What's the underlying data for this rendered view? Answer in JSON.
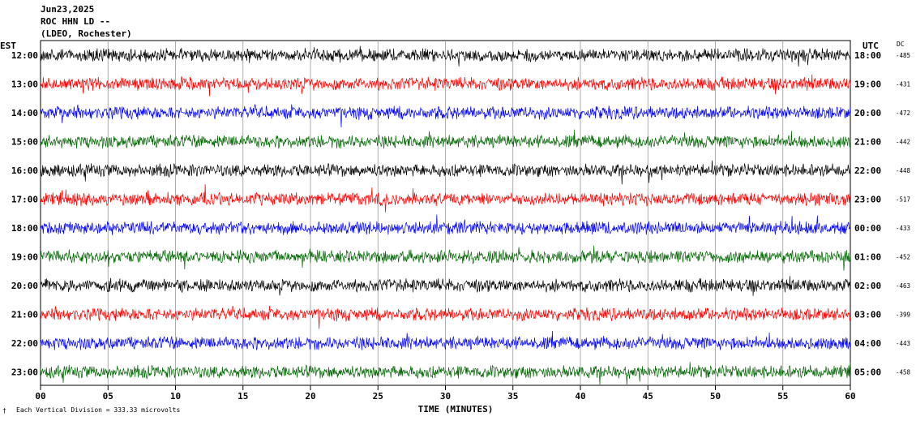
{
  "header": {
    "date": "Jun23,2025",
    "station": "ROC HHN LD --",
    "network": "(LDEO, Rochester)"
  },
  "left_timezone": "EST",
  "right_timezone": "UTC",
  "dc_label": "DC",
  "xlabel": "TIME (MINUTES)",
  "scale_note": "Each Vertical Division =  333.33 microvolts",
  "chart_data": {
    "type": "line",
    "title": "",
    "xlabel": "TIME (MINUTES)",
    "xlim": [
      0,
      60
    ],
    "x_ticks": [
      "00",
      "05",
      "10",
      "15",
      "20",
      "25",
      "30",
      "35",
      "40",
      "45",
      "50",
      "55",
      "60"
    ],
    "grid": "vertical lines every 5 minutes",
    "colors": [
      "#000000",
      "#ff0000",
      "#0000ff",
      "#006400"
    ],
    "rows": [
      {
        "est": "12:00",
        "utc": "18:00",
        "dc": "-485",
        "color": "#000000"
      },
      {
        "est": "13:00",
        "utc": "19:00",
        "dc": "-431",
        "color": "#ff0000"
      },
      {
        "est": "14:00",
        "utc": "20:00",
        "dc": "-472",
        "color": "#0000ff"
      },
      {
        "est": "15:00",
        "utc": "21:00",
        "dc": "-442",
        "color": "#006400"
      },
      {
        "est": "16:00",
        "utc": "22:00",
        "dc": "-448",
        "color": "#000000"
      },
      {
        "est": "17:00",
        "utc": "23:00",
        "dc": "-517",
        "color": "#ff0000"
      },
      {
        "est": "18:00",
        "utc": "00:00",
        "dc": "-433",
        "color": "#0000ff"
      },
      {
        "est": "19:00",
        "utc": "01:00",
        "dc": "-452",
        "color": "#006400"
      },
      {
        "est": "20:00",
        "utc": "02:00",
        "dc": "-463",
        "color": "#000000"
      },
      {
        "est": "21:00",
        "utc": "03:00",
        "dc": "-399",
        "color": "#ff0000"
      },
      {
        "est": "22:00",
        "utc": "04:00",
        "dc": "-443",
        "color": "#0000ff"
      },
      {
        "est": "23:00",
        "utc": "05:00",
        "dc": "-458",
        "color": "#006400"
      }
    ]
  }
}
